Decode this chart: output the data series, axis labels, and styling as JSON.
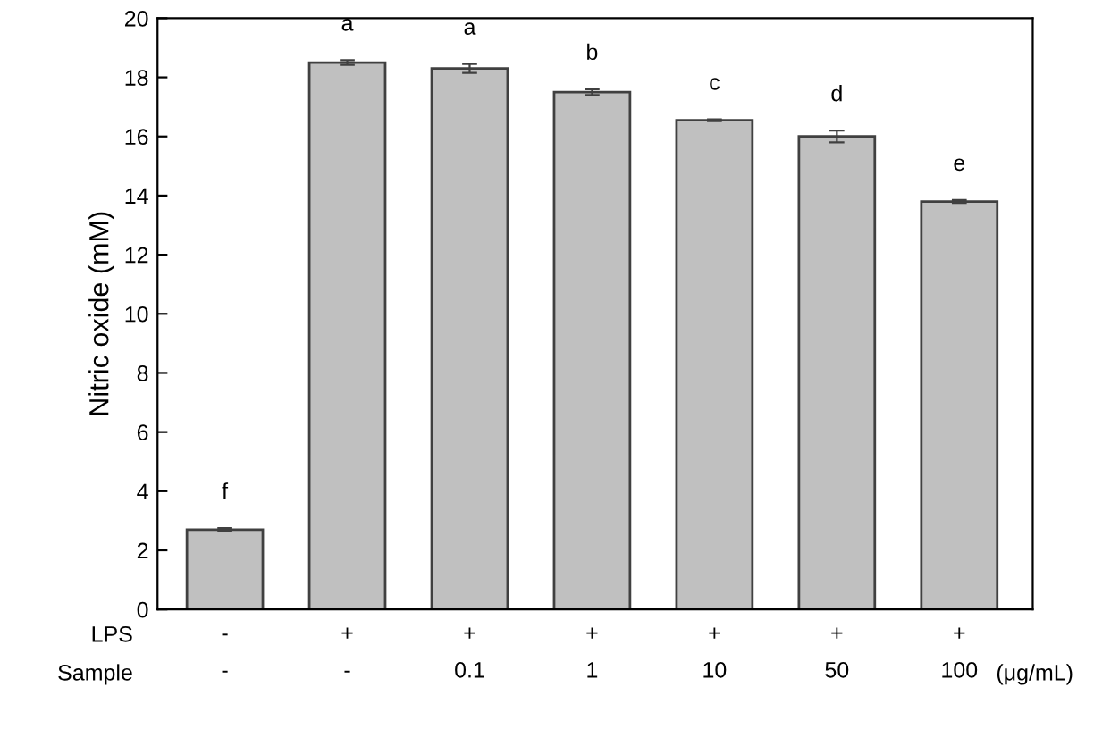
{
  "chart_data": {
    "type": "bar",
    "ylabel": "Nitric oxide (mM)",
    "categories": [
      "-\n-",
      "+\n-",
      "+\n0.1",
      "+\n1",
      "+\n10",
      "+\n50",
      "+\n100"
    ],
    "values": [
      2.7,
      18.5,
      18.3,
      17.5,
      16.55,
      16.0,
      13.8
    ],
    "errors": [
      0.05,
      0.08,
      0.15,
      0.1,
      0.03,
      0.2,
      0.05
    ],
    "color": "#c0c0c0",
    "ylim": [
      0,
      20
    ],
    "yticks": [
      0,
      2,
      4,
      6,
      8,
      10,
      12,
      14,
      16,
      18,
      20
    ],
    "grid": false,
    "annotations": [
      "LPS",
      "Sample",
      "(μg/mL)",
      "f",
      "a",
      "a",
      "b",
      "c",
      "d",
      "e"
    ]
  }
}
